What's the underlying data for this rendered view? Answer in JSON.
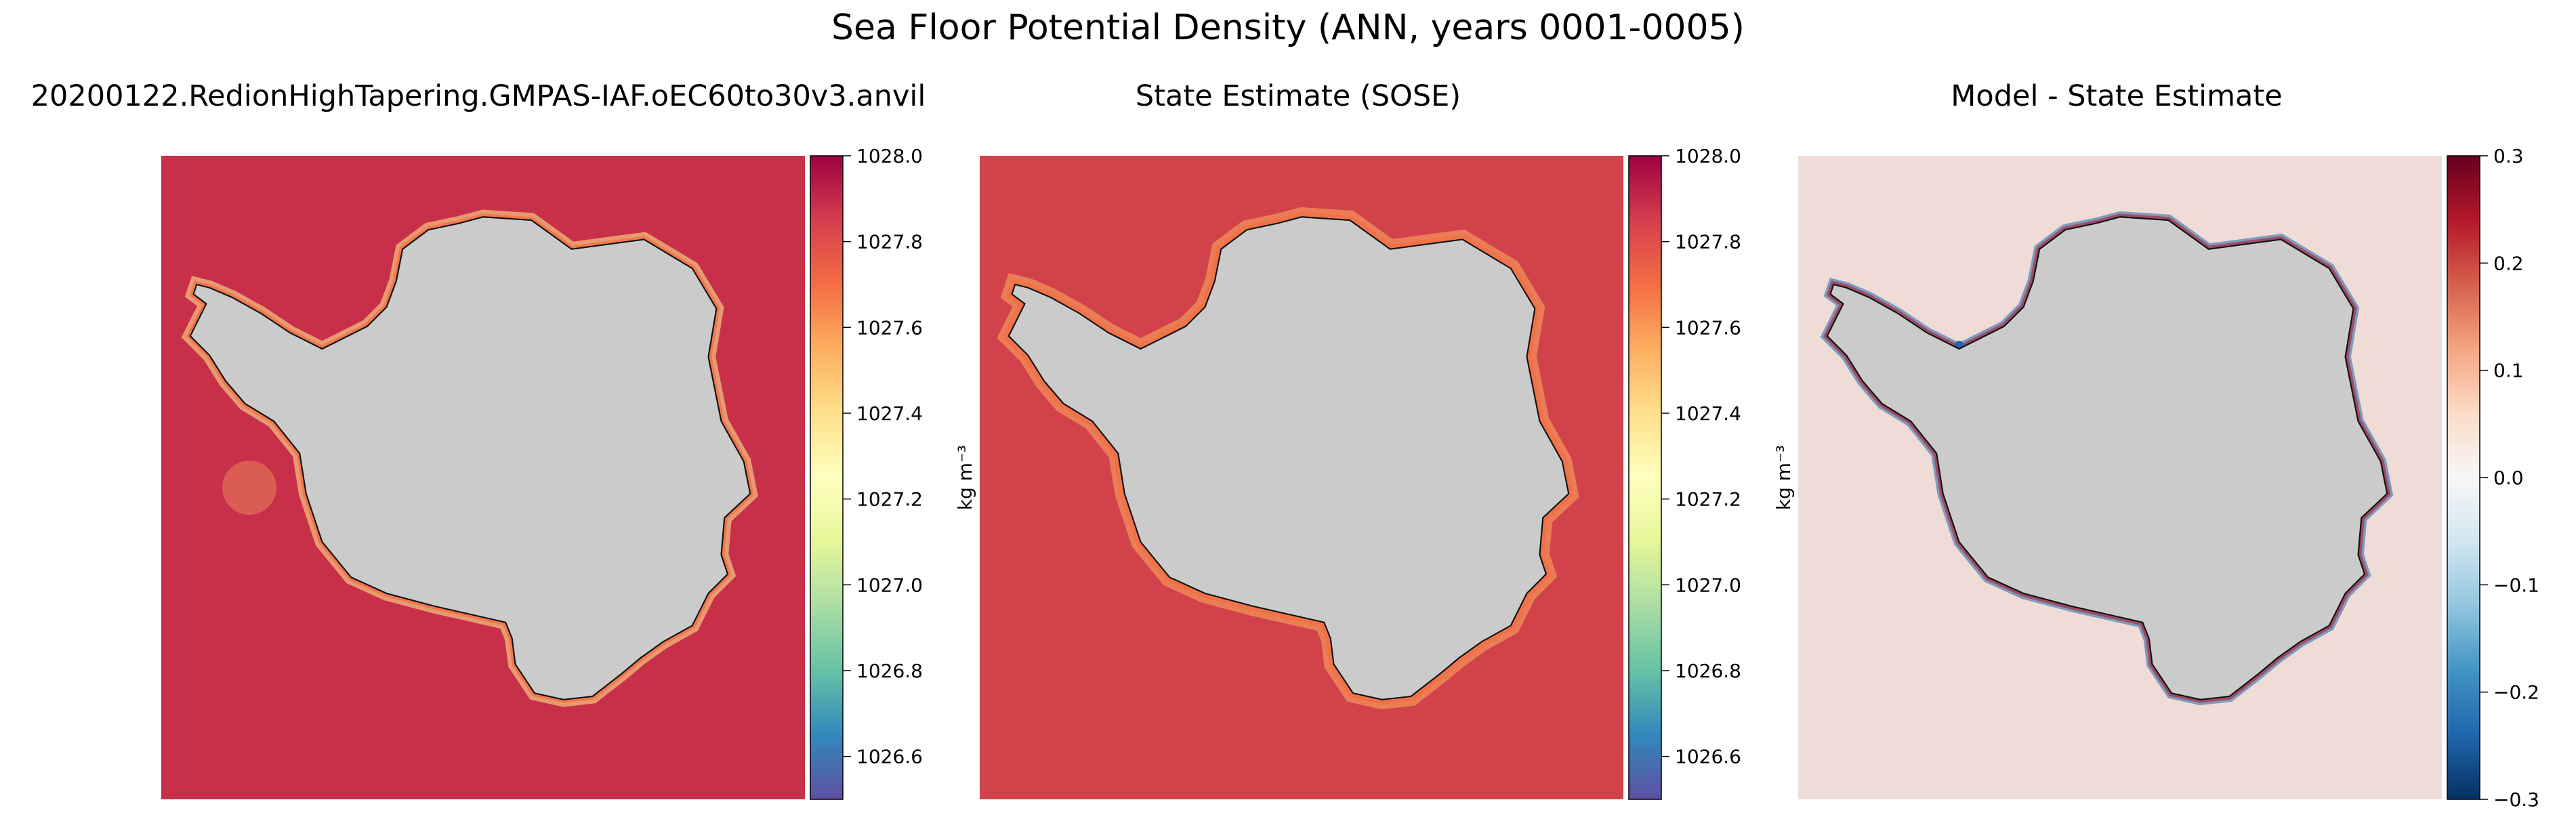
{
  "figure": {
    "suptitle": "Sea Floor Potential Density (ANN, years 0001-0005)"
  },
  "chart_data": [
    {
      "type": "heatmap",
      "title": "20200122.RedionHighTapering.GMPAS-IAF.oEC60to30v3.anvil",
      "colormap": "Spectral_r",
      "land_color": "#cbcbcb",
      "ocean_color": "#c8304a",
      "colorbar": {
        "label": "kg m⁻³",
        "range": [
          1026.5,
          1028.0
        ],
        "ticks": [
          "1026.6",
          "1026.8",
          "1027.0",
          "1027.2",
          "1027.4",
          "1027.6",
          "1027.8",
          "1028.0"
        ]
      }
    },
    {
      "type": "heatmap",
      "title": "State Estimate (SOSE)",
      "colormap": "Spectral_r",
      "land_color": "#cbcbcb",
      "ocean_color": "#d2424a",
      "colorbar": {
        "label": "kg m⁻³",
        "range": [
          1026.5,
          1028.0
        ],
        "ticks": [
          "1026.6",
          "1026.8",
          "1027.0",
          "1027.2",
          "1027.4",
          "1027.6",
          "1027.8",
          "1028.0"
        ]
      }
    },
    {
      "type": "heatmap",
      "title": "Model - State Estimate",
      "colormap": "RdBu_r",
      "land_color": "#cbcbcb",
      "ocean_color": "#f0dcd6",
      "colorbar": {
        "label": "kg m⁻³",
        "range": [
          -0.3,
          0.3
        ],
        "ticks": [
          "−0.3",
          "−0.2",
          "−0.1",
          "0.0",
          "0.1",
          "0.2",
          "0.3"
        ]
      }
    }
  ]
}
